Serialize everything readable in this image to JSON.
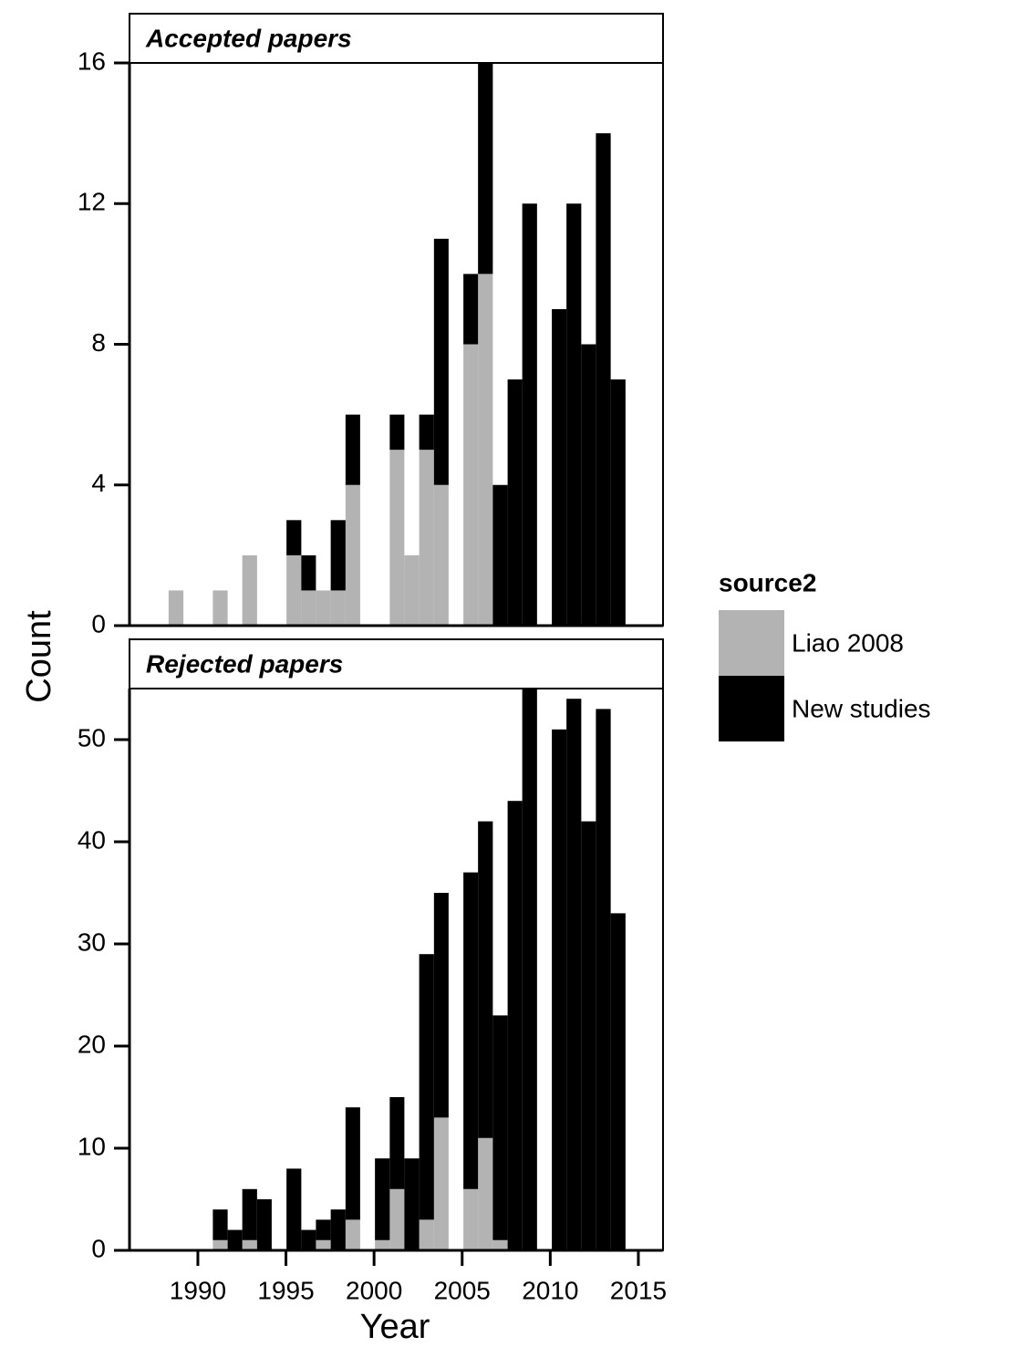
{
  "chart_data": [
    {
      "type": "histogram",
      "title": "Accepted papers",
      "ylabel": "Count",
      "legend_title": "source2",
      "bins": [
        1988.34,
        1989.18,
        1990.01,
        1990.85,
        1991.69,
        1992.52,
        1993.36,
        1994.19,
        1995.03,
        1995.87,
        1996.7,
        1997.54,
        1998.38,
        1999.21,
        2000.05,
        2000.89,
        2001.72,
        2002.56,
        2003.4,
        2004.23,
        2005.07,
        2005.9,
        2006.74,
        2007.58,
        2008.41,
        2009.25,
        2010.09,
        2010.92,
        2011.76,
        2012.59,
        2013.43,
        2014.27
      ],
      "series": [
        {
          "name": "Liao 2008",
          "color": "#b3b3b3",
          "values": [
            1,
            0,
            0,
            1,
            0,
            2,
            0,
            0,
            2,
            1,
            1,
            1,
            4,
            0,
            0,
            5,
            2,
            5,
            4,
            0,
            8,
            10,
            0,
            0,
            0,
            0,
            0,
            0,
            0,
            0,
            0
          ]
        },
        {
          "name": "New studies",
          "color": "#000000",
          "values": [
            0,
            0,
            0,
            0,
            0,
            0,
            0,
            0,
            1,
            1,
            0,
            2,
            2,
            0,
            0,
            1,
            0,
            1,
            7,
            0,
            2,
            6,
            4,
            7,
            12,
            0,
            9,
            12,
            8,
            14,
            7
          ]
        }
      ],
      "xlim": [
        1986.12,
        2016.4
      ],
      "ylim": [
        0,
        16
      ],
      "yticks": [
        0,
        4,
        8,
        12,
        16
      ]
    },
    {
      "type": "histogram",
      "title": "Rejected papers",
      "xlabel": "Year",
      "bins": [
        1988.34,
        1989.18,
        1990.01,
        1990.85,
        1991.69,
        1992.52,
        1993.36,
        1994.19,
        1995.03,
        1995.87,
        1996.7,
        1997.54,
        1998.38,
        1999.21,
        2000.05,
        2000.89,
        2001.72,
        2002.56,
        2003.4,
        2004.23,
        2005.07,
        2005.9,
        2006.74,
        2007.58,
        2008.41,
        2009.25,
        2010.09,
        2010.92,
        2011.76,
        2012.59,
        2013.43,
        2014.27
      ],
      "series": [
        {
          "name": "Liao 2008",
          "color": "#b3b3b3",
          "values": [
            0,
            0,
            0,
            1,
            0,
            1,
            0,
            0,
            0,
            0,
            1,
            0,
            3,
            0,
            1,
            6,
            0,
            3,
            13,
            0,
            6,
            11,
            1,
            0,
            0,
            0,
            0,
            0,
            0,
            0,
            0
          ]
        },
        {
          "name": "New studies",
          "color": "#000000",
          "values": [
            0,
            0,
            0,
            3,
            2,
            5,
            5,
            0,
            8,
            2,
            2,
            4,
            11,
            0,
            8,
            9,
            9,
            26,
            22,
            0,
            31,
            31,
            22,
            44,
            55,
            0,
            51,
            54,
            42,
            53,
            33
          ]
        }
      ],
      "xlim": [
        1986.12,
        2016.4
      ],
      "ylim": [
        0,
        55
      ],
      "yticks": [
        0,
        10,
        20,
        30,
        40,
        50
      ],
      "xticks": [
        1990,
        1995,
        2000,
        2005,
        2010,
        2015
      ]
    }
  ]
}
